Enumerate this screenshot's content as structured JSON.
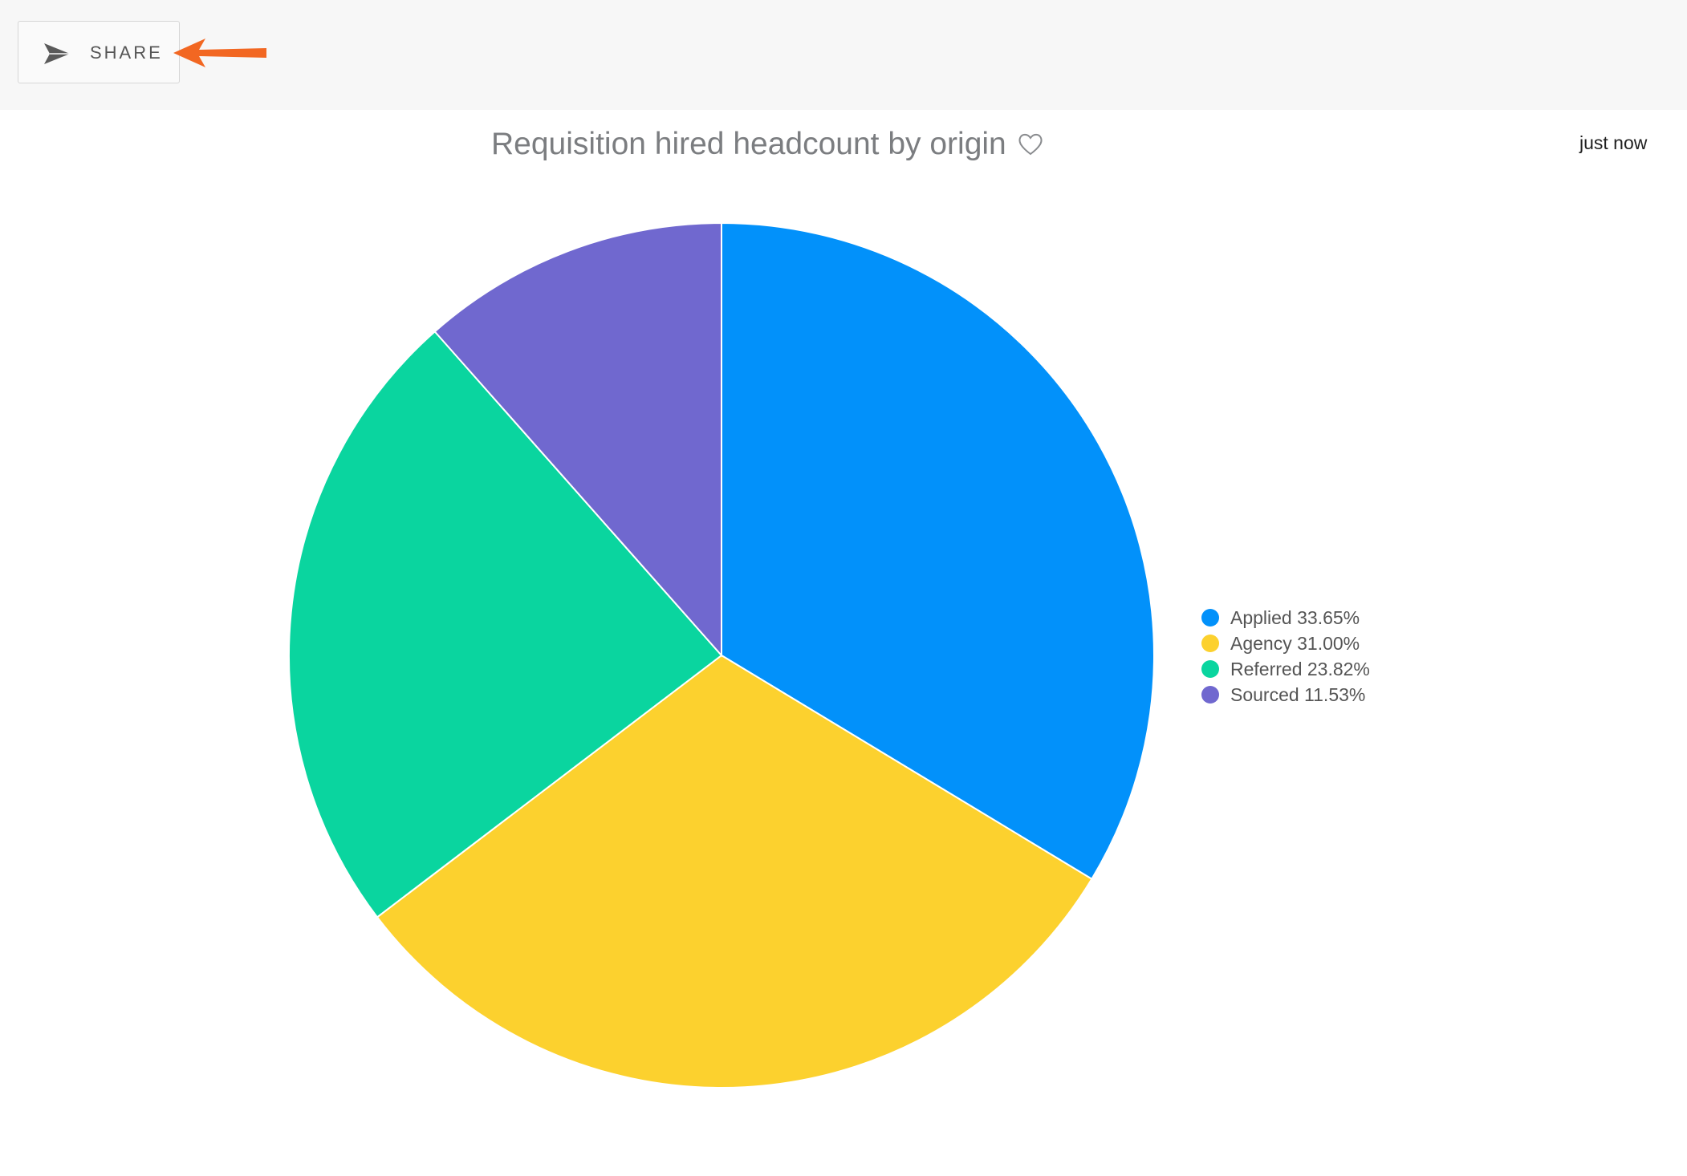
{
  "toolbar": {
    "share_label": "SHARE",
    "share_icon": "paper-plane-icon",
    "annotation": "arrow pointing to share button",
    "annotation_color": "#f26722"
  },
  "header": {
    "title": "Requisition hired headcount by origin",
    "favorite_icon": "heart-icon",
    "timestamp": "just now"
  },
  "chart_data": {
    "type": "pie",
    "title": "Requisition hired headcount by origin",
    "legend_position": "right",
    "slices": [
      {
        "label": "Applied",
        "value": 33.65,
        "display": "Applied 33.65%",
        "color": "#0291fa"
      },
      {
        "label": "Agency",
        "value": 31.0,
        "display": "Agency 31.00%",
        "color": "#fcd12e"
      },
      {
        "label": "Referred",
        "value": 23.82,
        "display": "Referred 23.82%",
        "color": "#0ad59f"
      },
      {
        "label": "Sourced",
        "value": 11.53,
        "display": "Sourced 11.53%",
        "color": "#7068cf"
      }
    ]
  }
}
